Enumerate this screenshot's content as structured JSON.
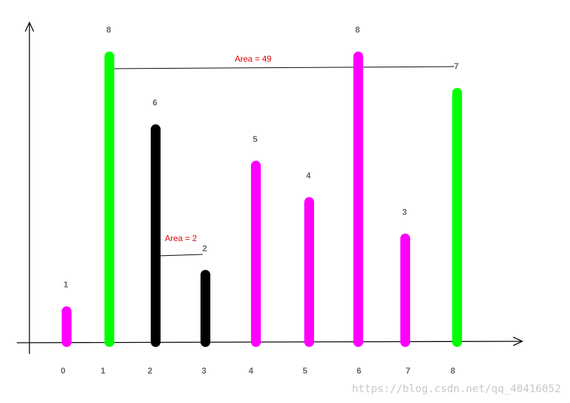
{
  "chart_data": {
    "type": "bar",
    "categories": [
      "0",
      "1",
      "2",
      "3",
      "4",
      "5",
      "6",
      "7",
      "8"
    ],
    "values": [
      1,
      8,
      6,
      2,
      5,
      4,
      8,
      3,
      7
    ],
    "colors": [
      "#ff00ff",
      "#00ff00",
      "#000000",
      "#000000",
      "#ff00ff",
      "#ff00ff",
      "#ff00ff",
      "#ff00ff",
      "#00ff00"
    ],
    "ylim": [
      0,
      8.8
    ],
    "annotations": [
      "Area = 49",
      "Area = 2"
    ],
    "watermark": "https://blog.csdn.net/qq_40416052"
  }
}
